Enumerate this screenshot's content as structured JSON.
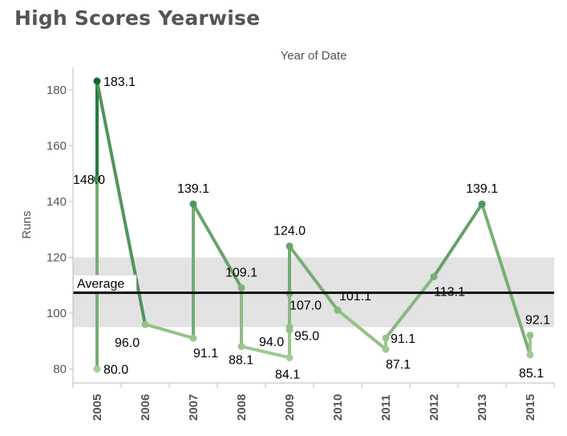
{
  "title": "High Scores Yearwise",
  "chart_data": {
    "type": "line",
    "title": "High Scores Yearwise",
    "xlabel": "Year of Date",
    "ylabel": "Runs",
    "ylim": [
      75,
      188
    ],
    "yticks": [
      80,
      100,
      120,
      140,
      160,
      180
    ],
    "categories": [
      "2005",
      "2006",
      "2007",
      "2008",
      "2009",
      "2010",
      "2011",
      "2012",
      "2013",
      "2015"
    ],
    "points": [
      {
        "year": "2005",
        "value": 80.0,
        "label": "80.0"
      },
      {
        "year": "2005",
        "value": 148.0,
        "label": "148.0"
      },
      {
        "year": "2005",
        "value": 183.1,
        "label": "183.1"
      },
      {
        "year": "2006",
        "value": 96.0,
        "label": "96.0"
      },
      {
        "year": "2007",
        "value": 91.1,
        "label": "91.1"
      },
      {
        "year": "2007",
        "value": 139.1,
        "label": "139.1"
      },
      {
        "year": "2008",
        "value": 109.1,
        "label": "109.1"
      },
      {
        "year": "2008",
        "value": 88.1,
        "label": "88.1"
      },
      {
        "year": "2009",
        "value": 84.1,
        "label": "84.1"
      },
      {
        "year": "2009",
        "value": 94.0,
        "label": "94.0"
      },
      {
        "year": "2009",
        "value": 95.0,
        "label": "95.0"
      },
      {
        "year": "2009",
        "value": 107.0,
        "label": "107.0"
      },
      {
        "year": "2009",
        "value": 124.0,
        "label": "124.0"
      },
      {
        "year": "2010",
        "value": 101.1,
        "label": "101.1"
      },
      {
        "year": "2011",
        "value": 87.1,
        "label": "87.1"
      },
      {
        "year": "2011",
        "value": 91.1,
        "label": "91.1"
      },
      {
        "year": "2012",
        "value": 113.1,
        "label": "113.1"
      },
      {
        "year": "2013",
        "value": 139.1,
        "label": "139.1"
      },
      {
        "year": "2015",
        "value": 85.1,
        "label": "85.1"
      },
      {
        "year": "2015",
        "value": 92.1,
        "label": "92.1"
      }
    ],
    "reference_line": {
      "label": "Average",
      "value": 107.3
    },
    "reference_band": [
      95,
      120
    ],
    "grid": false,
    "colors": {
      "low": "#a8cf96",
      "high": "#0f6a2e",
      "band": "#e3e3e3",
      "average": "#111111"
    }
  }
}
